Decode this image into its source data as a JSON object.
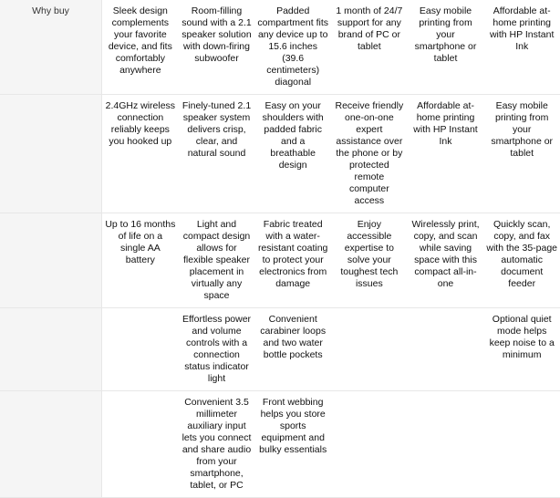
{
  "colors": {
    "row_header_bg": "#f5f5f5",
    "border": "#e7e7e7",
    "text": "#111111",
    "header_text": "#333333",
    "page_bg": "#ffffff"
  },
  "table": {
    "row_header_label": "Why buy",
    "rows": [
      {
        "cells": [
          "Sleek design complements your favorite device, and fits comfortably anywhere",
          "Room-filling sound with a 2.1 speaker solution with down-firing subwoofer",
          "Padded compartment fits any device up to 15.6 inches (39.6 centimeters) diagonal",
          "1 month of 24/7 support for any brand of PC or tablet",
          "Easy mobile printing from your smartphone or tablet",
          "Affordable at-home printing with HP Instant Ink"
        ]
      },
      {
        "cells": [
          "2.4GHz wireless connection reliably keeps you hooked up",
          "Finely-tuned 2.1 speaker system delivers crisp, clear, and natural sound",
          "Easy on your shoulders with padded fabric and a breathable design",
          "Receive friendly one-on-one expert assistance over the phone or by protected remote computer access",
          "Affordable at-home printing with HP Instant Ink",
          "Easy mobile printing from your smartphone or tablet"
        ]
      },
      {
        "cells": [
          "Up to 16 months of life on a single AA battery",
          "Light and compact design allows for flexible speaker placement in virtually any space",
          "Fabric treated with a water-resistant coating to protect your electronics from damage",
          "Enjoy accessible expertise to solve your toughest tech issues",
          "Wirelessly print, copy, and scan while saving space with this compact all-in-one",
          "Quickly scan, copy, and fax with the 35-page automatic document feeder"
        ]
      },
      {
        "cells": [
          "",
          "Effortless power and volume controls with a connection status indicator light",
          "Convenient carabiner loops and two water bottle pockets",
          "",
          "",
          "Optional quiet mode helps keep noise to a minimum"
        ]
      },
      {
        "cells": [
          "",
          "Convenient 3.5 millimeter auxiliary input lets you connect and share audio from your smartphone, tablet, or PC",
          "Front webbing helps you store sports equipment and bulky essentials",
          "",
          "",
          ""
        ]
      }
    ]
  }
}
